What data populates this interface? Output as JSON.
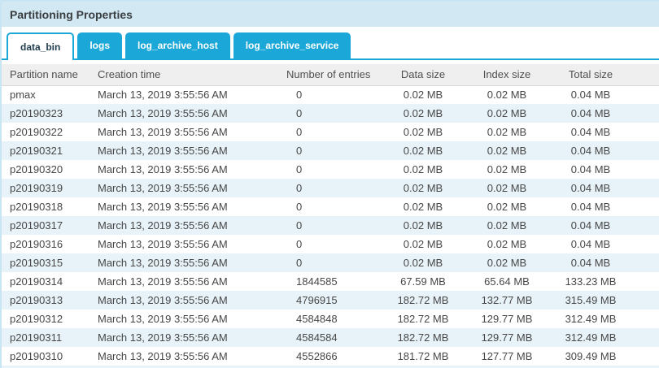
{
  "panel": {
    "title": "Partitioning Properties"
  },
  "tabs": [
    {
      "label": "data_bin",
      "active": true
    },
    {
      "label": "logs",
      "active": false
    },
    {
      "label": "log_archive_host",
      "active": false
    },
    {
      "label": "log_archive_service",
      "active": false
    }
  ],
  "table": {
    "columns": [
      "Partition name",
      "Creation time",
      "Number of entries",
      "Data size",
      "Index size",
      "Total size"
    ],
    "rows": [
      [
        "pmax",
        "March 13, 2019 3:55:56 AM",
        "0",
        "0.02 MB",
        "0.02 MB",
        "0.04 MB"
      ],
      [
        "p20190323",
        "March 13, 2019 3:55:56 AM",
        "0",
        "0.02 MB",
        "0.02 MB",
        "0.04 MB"
      ],
      [
        "p20190322",
        "March 13, 2019 3:55:56 AM",
        "0",
        "0.02 MB",
        "0.02 MB",
        "0.04 MB"
      ],
      [
        "p20190321",
        "March 13, 2019 3:55:56 AM",
        "0",
        "0.02 MB",
        "0.02 MB",
        "0.04 MB"
      ],
      [
        "p20190320",
        "March 13, 2019 3:55:56 AM",
        "0",
        "0.02 MB",
        "0.02 MB",
        "0.04 MB"
      ],
      [
        "p20190319",
        "March 13, 2019 3:55:56 AM",
        "0",
        "0.02 MB",
        "0.02 MB",
        "0.04 MB"
      ],
      [
        "p20190318",
        "March 13, 2019 3:55:56 AM",
        "0",
        "0.02 MB",
        "0.02 MB",
        "0.04 MB"
      ],
      [
        "p20190317",
        "March 13, 2019 3:55:56 AM",
        "0",
        "0.02 MB",
        "0.02 MB",
        "0.04 MB"
      ],
      [
        "p20190316",
        "March 13, 2019 3:55:56 AM",
        "0",
        "0.02 MB",
        "0.02 MB",
        "0.04 MB"
      ],
      [
        "p20190315",
        "March 13, 2019 3:55:56 AM",
        "0",
        "0.02 MB",
        "0.02 MB",
        "0.04 MB"
      ],
      [
        "p20190314",
        "March 13, 2019 3:55:56 AM",
        "1844585",
        "67.59 MB",
        "65.64 MB",
        "133.23 MB"
      ],
      [
        "p20190313",
        "March 13, 2019 3:55:56 AM",
        "4796915",
        "182.72 MB",
        "132.77 MB",
        "315.49 MB"
      ],
      [
        "p20190312",
        "March 13, 2019 3:55:56 AM",
        "4584848",
        "182.72 MB",
        "129.77 MB",
        "312.49 MB"
      ],
      [
        "p20190311",
        "March 13, 2019 3:55:56 AM",
        "4584584",
        "182.72 MB",
        "129.77 MB",
        "312.49 MB"
      ],
      [
        "p20190310",
        "March 13, 2019 3:55:56 AM",
        "4552866",
        "181.72 MB",
        "127.77 MB",
        "309.49 MB"
      ]
    ]
  },
  "colors": {
    "accent": "#1ba8d9",
    "title_bar_bg": "#d2e9f4",
    "panel_border": "#c9e4f2",
    "row_alt_bg": "#e8f3f9",
    "header_bg": "#efefef",
    "header_text": "#4f4f4f",
    "body_text": "#474747",
    "title_text": "#3a3d40",
    "active_tab_text": "#223d4d"
  }
}
